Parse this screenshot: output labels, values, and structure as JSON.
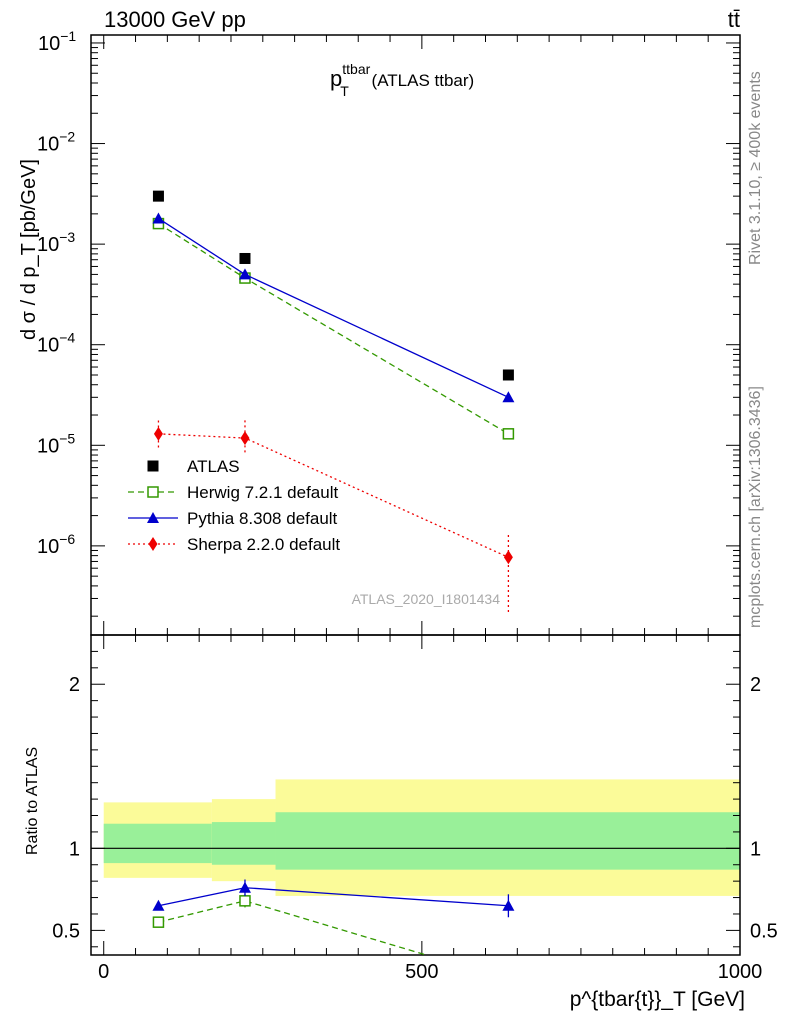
{
  "header": {
    "energy": "13000 GeV pp",
    "process": "tt̄"
  },
  "side": {
    "rivet": "Rivet 3.1.10, ≥ 400k events",
    "site": "mcplots.cern.ch [arXiv:1306.3436]"
  },
  "plot": {
    "title_main": "p",
    "title_sup": "ttbar",
    "title_sub": "T",
    "title_rest": " (ATLAS ttbar)",
    "watermark": "ATLAS_2020_I1801434"
  },
  "axes": {
    "ylabel_main": "d σ / d p_T  [pb/GeV]",
    "ylabel_ratio": "Ratio to ATLAS",
    "xlabel": "p^{tbar{t}}_T [GeV]"
  },
  "colors": {
    "atlas": "#000000",
    "herwig": "#339900",
    "pythia": "#0000cc",
    "sherpa": "#ee0000",
    "band_inner": "#99f099",
    "band_outer": "#fbfb99"
  },
  "chart_data": [
    {
      "type": "line",
      "scale": "log",
      "xlim": [
        -20,
        1000
      ],
      "ylim": [
        1.3e-07,
        0.12
      ],
      "yticks": [
        "10^{-6}",
        "10^{-5}",
        "10^{-4}",
        "10^{-3}",
        "10^{-2}",
        "10^{-1}"
      ],
      "legend_position": "middle-left",
      "series": [
        {
          "name": "ATLAS",
          "style": "marker",
          "x": [
            86,
            222,
            636
          ],
          "y": [
            0.003,
            0.00072,
            5e-05
          ]
        },
        {
          "name": "Herwig 7.2.1 default",
          "style": "dashed",
          "x": [
            86,
            222,
            636
          ],
          "y": [
            0.0016,
            0.00046,
            1.3e-05
          ]
        },
        {
          "name": "Pythia 8.308 default",
          "style": "solid",
          "x": [
            86,
            222,
            636
          ],
          "y": [
            0.0018,
            0.0005,
            3e-05
          ]
        },
        {
          "name": "Sherpa 2.2.0 default",
          "style": "dotted",
          "x": [
            86,
            222,
            636
          ],
          "y": [
            1.3e-05,
            1.18e-05,
            7.7e-07
          ],
          "err_low": [
            9.5e-06,
            8.5e-06,
            2.2e-07
          ],
          "err_high": [
            1.8e-05,
            1.8e-05,
            1.3e-06
          ]
        }
      ]
    },
    {
      "type": "line",
      "xlim": [
        -20,
        1000
      ],
      "ylim": [
        0.35,
        2.3
      ],
      "yticks": [
        0.5,
        1,
        2
      ],
      "xticks": [
        0,
        500,
        1000
      ],
      "bands": [
        {
          "x0": 0,
          "x1": 170,
          "inner": [
            0.91,
            1.15
          ],
          "outer": [
            0.82,
            1.28
          ]
        },
        {
          "x0": 170,
          "x1": 270,
          "inner": [
            0.9,
            1.16
          ],
          "outer": [
            0.8,
            1.3
          ]
        },
        {
          "x0": 270,
          "x1": 1000,
          "inner": [
            0.87,
            1.22
          ],
          "outer": [
            0.71,
            1.42
          ]
        }
      ],
      "series": [
        {
          "name": "Herwig 7.2.1 default",
          "x": [
            86,
            222,
            636
          ],
          "y": [
            0.55,
            0.68,
            0.2
          ],
          "err": [
            0.02,
            0.04,
            0
          ]
        },
        {
          "name": "Pythia 8.308 default",
          "x": [
            86,
            222,
            636
          ],
          "y": [
            0.65,
            0.76,
            0.65
          ],
          "err": [
            0.02,
            0.05,
            0.07
          ]
        }
      ]
    }
  ]
}
